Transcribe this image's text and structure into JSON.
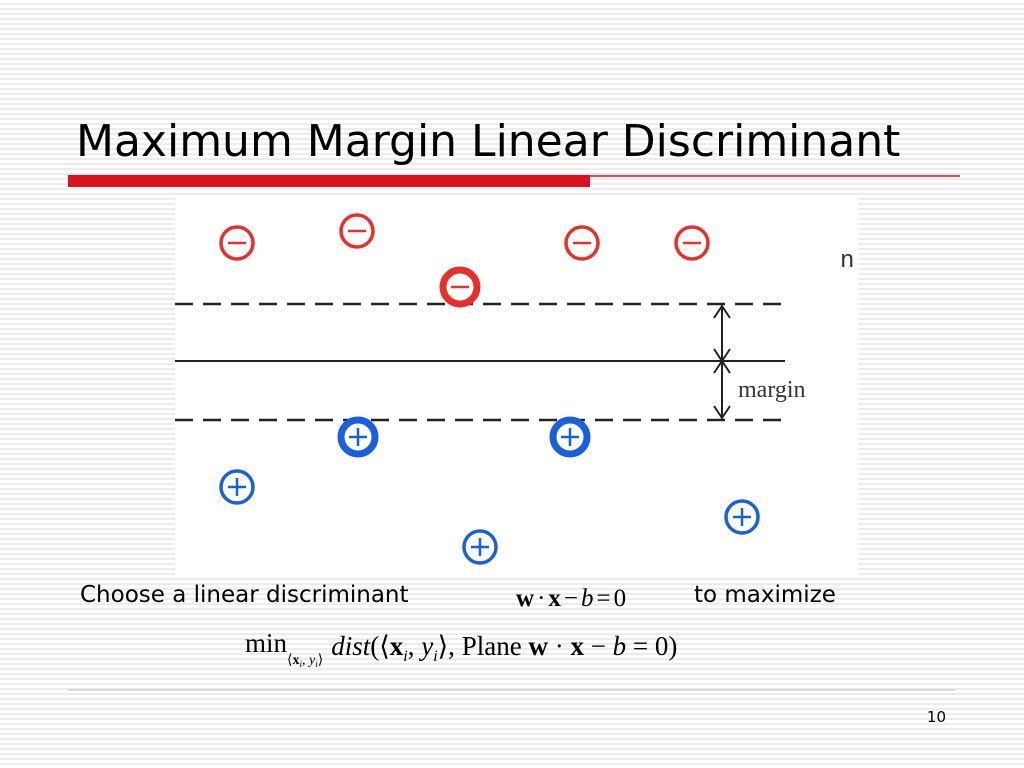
{
  "header": {
    "title": "Maximum Margin Linear Discriminant"
  },
  "diagram": {
    "margin_label": "margin",
    "cropped_label": "n",
    "minus_symbol": "−",
    "plus_symbol": "+"
  },
  "body": {
    "sentence": {
      "before": "Choose a linear discriminant",
      "after": "to maximize"
    },
    "formula1": [
      "w",
      "·",
      "x",
      "−",
      "b",
      "=",
      "0"
    ],
    "formula2": {
      "min": "min",
      "sub": [
        "⟨",
        "x",
        "i",
        ", ",
        "y",
        "i",
        "⟩"
      ],
      "rest": [
        "dist",
        "(⟨",
        "x",
        "i",
        ", ",
        "y",
        "i",
        "⟩, ",
        "Plane ",
        "w",
        " · ",
        "x",
        " − ",
        "b",
        " = 0)"
      ]
    }
  },
  "footer": {
    "page_number": "10"
  }
}
